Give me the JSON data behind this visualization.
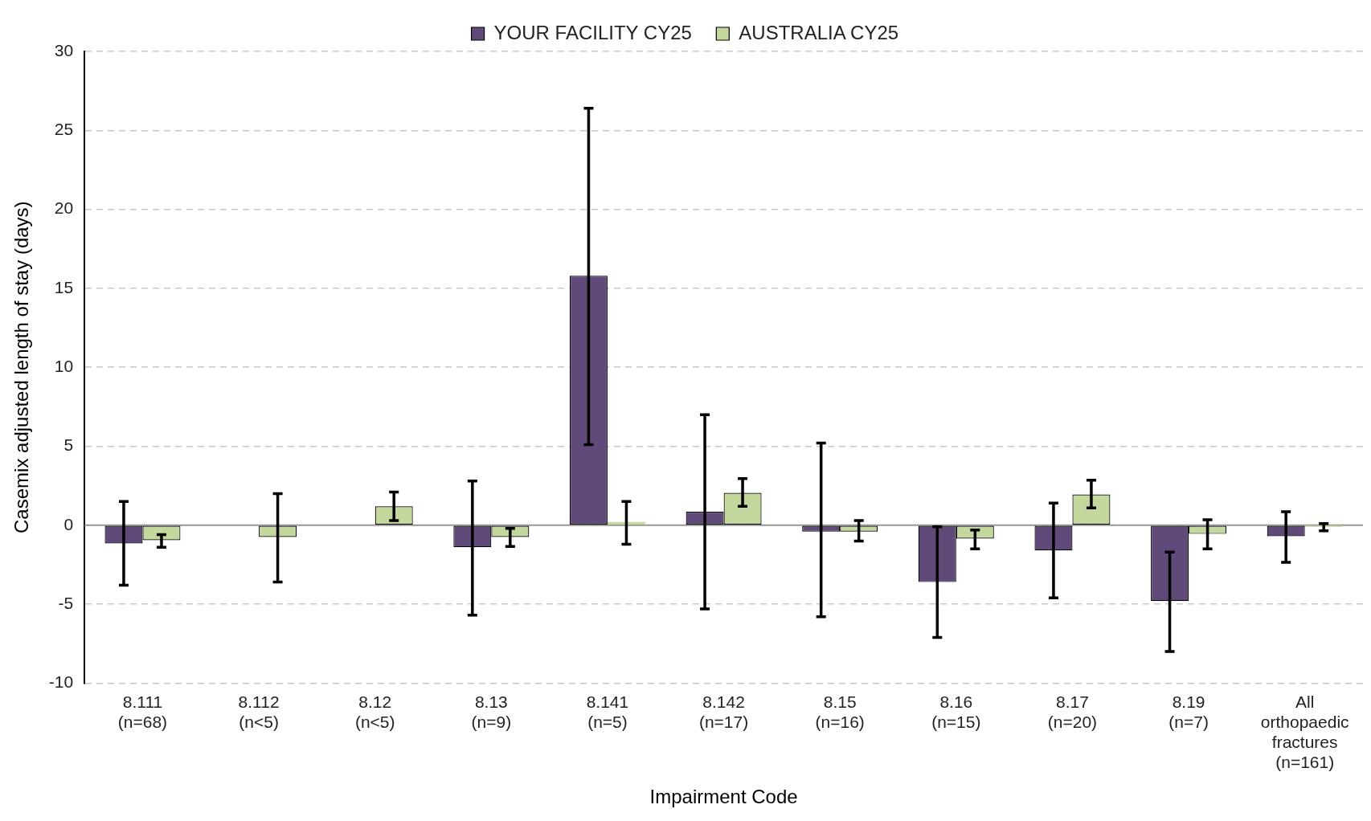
{
  "chart_data": {
    "type": "bar",
    "xlabel": "Impairment Code",
    "ylabel": "Casemix adjusted length of stay (days)",
    "categories": [
      "8.111\n(n=68)",
      "8.112\n(n<5)",
      "8.12\n(n<5)",
      "8.13\n(n=9)",
      "8.141\n(n=5)",
      "8.142\n(n=17)",
      "8.15\n(n=16)",
      "8.16\n(n=15)",
      "8.17\n(n=20)",
      "8.19\n(n=7)",
      "All\northopaedic\nfractures\n(n=161)"
    ],
    "series": [
      {
        "name": "YOUR FACILITY CY25",
        "color": "#5f4a7a",
        "values": [
          -1.15,
          0,
          0,
          -1.4,
          15.8,
          0.85,
          -0.4,
          -3.6,
          -1.6,
          -4.8,
          -0.7
        ],
        "errors": [
          [
            -3.8,
            1.5
          ],
          null,
          null,
          [
            -5.7,
            2.8
          ],
          [
            5.1,
            26.4
          ],
          [
            -5.3,
            7.0
          ],
          [
            -5.8,
            5.2
          ],
          [
            -7.1,
            -0.1
          ],
          [
            -4.6,
            1.4
          ],
          [
            -8.0,
            -1.7
          ],
          [
            -2.35,
            0.85
          ]
        ]
      },
      {
        "name": "AUSTRALIA CY25",
        "color": "#c4d89e",
        "values": [
          -0.95,
          -0.75,
          1.2,
          -0.75,
          0.2,
          2.05,
          -0.4,
          -0.85,
          1.95,
          -0.55,
          -0.1
        ],
        "errors": [
          [
            -1.4,
            -0.6
          ],
          [
            -3.6,
            2.0
          ],
          [
            0.3,
            2.1
          ],
          [
            -1.35,
            -0.2
          ],
          [
            -1.2,
            1.5
          ],
          [
            1.2,
            2.95
          ],
          [
            -1.0,
            0.3
          ],
          [
            -1.5,
            -0.3
          ],
          [
            1.1,
            2.85
          ],
          [
            -1.5,
            0.35
          ],
          [
            -0.35,
            0.1
          ]
        ]
      }
    ],
    "ref_lines": [
      {
        "axis": "y",
        "value": 0,
        "color": "#999999"
      }
    ],
    "ylim": [
      -10,
      30
    ],
    "yticks": [
      -10,
      -5,
      0,
      5,
      10,
      15,
      20,
      25,
      30
    ],
    "grid": "y",
    "legend": "top"
  }
}
